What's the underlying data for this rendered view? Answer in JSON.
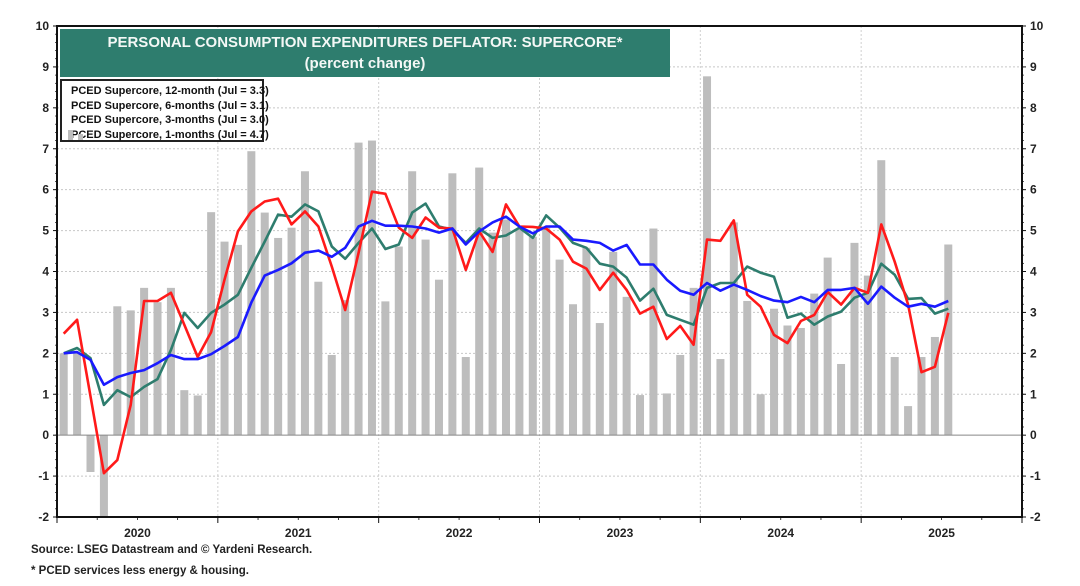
{
  "title": "PERSONAL CONSUMPTION EXPENDITURES DEFLATOR: SUPERCORE*",
  "subtitle": "(percent change)",
  "footer": {
    "source": "Source: LSEG Datastream and © Yardeni Research.",
    "note": "* PCED services less energy & housing."
  },
  "chart_data": {
    "type": "line",
    "title": "PERSONAL CONSUMPTION EXPENDITURES DEFLATOR: SUPERCORE*",
    "subtitle": "(percent change)",
    "xlabel": "",
    "ylabel": "",
    "ylim": [
      -2,
      10
    ],
    "yticks": [
      -2,
      -1,
      0,
      1,
      2,
      3,
      4,
      5,
      6,
      7,
      8,
      9,
      10
    ],
    "x_start": "2020-01",
    "x_end": "2025-12",
    "x_frequency": "monthly",
    "year_labels": [
      "2020",
      "2021",
      "2022",
      "2023",
      "2024",
      "2025"
    ],
    "grid": true,
    "legend_position": "top-left",
    "series": [
      {
        "name": "PCED Supercore, 12-month (Jul = 3.3)",
        "kind": "line",
        "color": "#1a1aff",
        "values": [
          2.0,
          2.03,
          1.84,
          1.23,
          1.42,
          1.52,
          1.59,
          1.76,
          1.96,
          1.86,
          1.86,
          1.98,
          2.18,
          2.4,
          3.24,
          3.9,
          4.04,
          4.2,
          4.46,
          4.51,
          4.36,
          4.58,
          5.1,
          5.24,
          5.12,
          5.12,
          5.1,
          5.05,
          4.95,
          5.05,
          4.66,
          4.98,
          5.2,
          5.34,
          5.1,
          4.93,
          5.1,
          5.1,
          4.78,
          4.75,
          4.7,
          4.51,
          4.65,
          4.17,
          4.17,
          3.8,
          3.53,
          3.43,
          3.72,
          3.53,
          3.68,
          3.55,
          3.4,
          3.29,
          3.25,
          3.38,
          3.25,
          3.55,
          3.55,
          3.6,
          3.21,
          3.63,
          3.36,
          3.14,
          3.21,
          3.14,
          3.28
        ]
      },
      {
        "name": "PCED Supercore, 6-months (Jul = 3.1)",
        "kind": "line",
        "color": "#2e7d6e",
        "values": [
          2.0,
          2.13,
          1.88,
          0.74,
          1.1,
          0.93,
          1.18,
          1.37,
          2.08,
          2.99,
          2.62,
          2.99,
          3.19,
          3.43,
          4.09,
          4.73,
          5.39,
          5.34,
          5.64,
          5.47,
          4.61,
          4.31,
          4.7,
          5.05,
          4.55,
          4.66,
          5.44,
          5.66,
          5.1,
          5.02,
          4.7,
          5.05,
          4.82,
          4.88,
          5.07,
          4.82,
          5.37,
          5.07,
          4.7,
          4.58,
          4.19,
          4.12,
          3.85,
          3.29,
          3.58,
          2.94,
          2.82,
          2.7,
          3.6,
          3.72,
          3.72,
          4.12,
          3.97,
          3.87,
          2.87,
          2.97,
          2.7,
          2.9,
          3.02,
          3.36,
          3.48,
          4.19,
          3.92,
          3.33,
          3.35,
          2.97,
          3.09
        ]
      },
      {
        "name": "PCED Supercore, 3-months (Jul = 3.0)",
        "kind": "line",
        "color": "#ff1a1a",
        "values": [
          2.48,
          2.82,
          0.95,
          -0.93,
          -0.61,
          0.74,
          3.28,
          3.28,
          3.48,
          2.7,
          1.91,
          2.52,
          3.8,
          4.98,
          5.47,
          5.71,
          5.78,
          5.15,
          5.47,
          5.1,
          4.12,
          3.06,
          4.46,
          5.95,
          5.9,
          5.07,
          4.82,
          5.32,
          5.07,
          5.05,
          4.04,
          4.98,
          4.48,
          5.64,
          5.1,
          5.09,
          5.05,
          4.78,
          4.24,
          4.07,
          3.55,
          3.97,
          3.55,
          2.97,
          3.14,
          2.35,
          2.67,
          2.21,
          4.78,
          4.75,
          5.25,
          3.43,
          3.14,
          2.45,
          2.25,
          2.79,
          2.94,
          3.5,
          3.19,
          3.6,
          3.48,
          5.15,
          4.24,
          3.19,
          1.54,
          1.67,
          2.99
        ]
      },
      {
        "name": "PCED Supercore, 1-months (Jul = 4.7)",
        "kind": "bar",
        "color": "#bdbdbd",
        "values": [
          2.0,
          2.0,
          -0.9,
          -2.1,
          3.15,
          3.05,
          3.6,
          3.25,
          3.6,
          1.1,
          0.97,
          5.45,
          4.73,
          4.65,
          6.94,
          5.44,
          4.82,
          5.07,
          6.45,
          3.75,
          1.96,
          3.3,
          7.15,
          7.2,
          3.27,
          4.61,
          6.45,
          4.78,
          3.8,
          6.4,
          1.91,
          6.54,
          4.95,
          5.27,
          5.02,
          4.85,
          5.1,
          4.29,
          3.2,
          4.58,
          2.74,
          4.48,
          3.38,
          0.98,
          5.05,
          1.02,
          1.96,
          3.6,
          8.77,
          1.86,
          5.2,
          3.28,
          1.0,
          3.09,
          2.68,
          2.62,
          3.46,
          4.34,
          1.74,
          4.7,
          3.9,
          6.72,
          1.91,
          0.71,
          1.91,
          2.4,
          4.66
        ]
      }
    ]
  }
}
